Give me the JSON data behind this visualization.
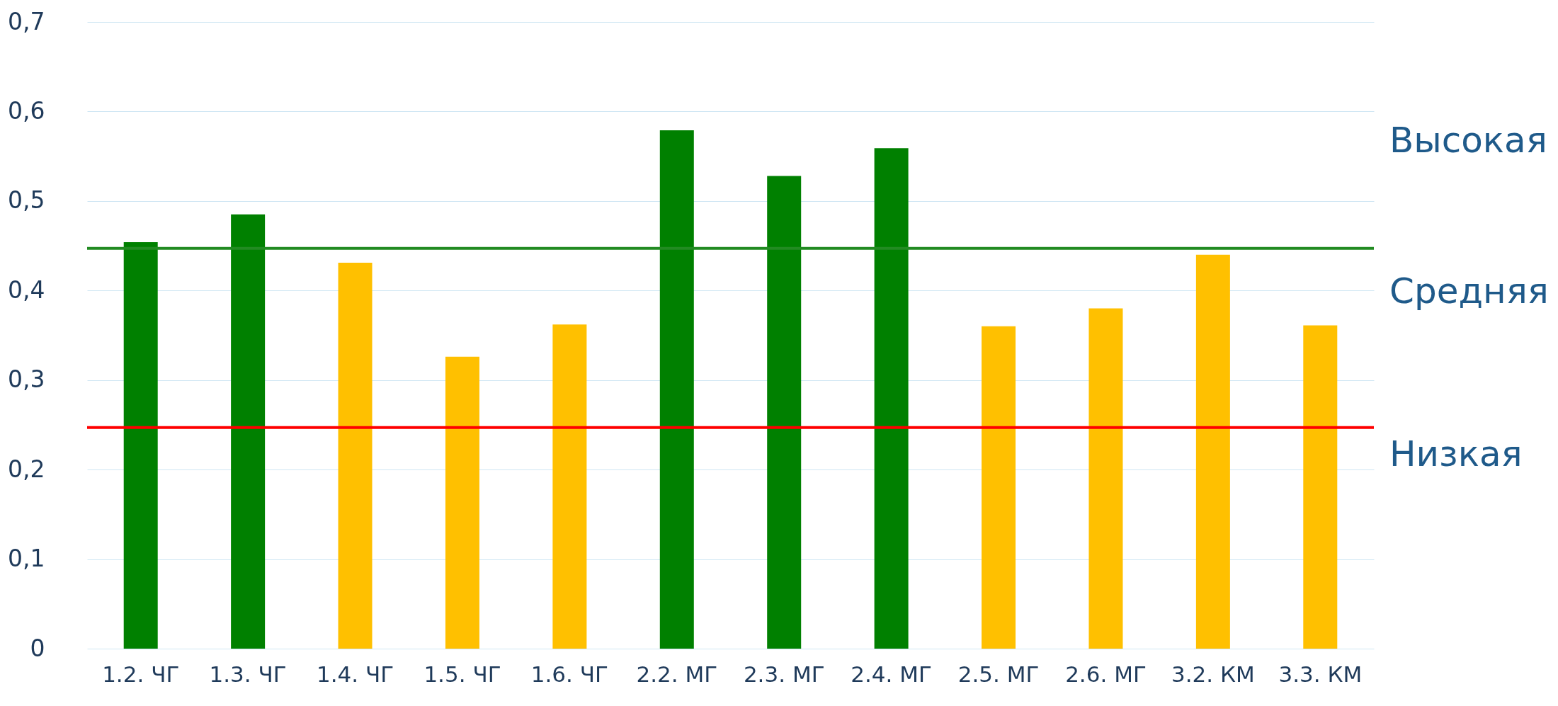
{
  "chart_data": {
    "type": "bar",
    "categories": [
      "1.2. ЧГ",
      "1.3. ЧГ",
      "1.4. ЧГ",
      "1.5. ЧГ",
      "1.6. ЧГ",
      "2.2. МГ",
      "2.3. МГ",
      "2.4. МГ",
      "2.5. МГ",
      "2.6. МГ",
      "3.2. КМ",
      "3.3. КМ"
    ],
    "values": [
      0.454,
      0.485,
      0.431,
      0.326,
      0.362,
      0.579,
      0.528,
      0.559,
      0.36,
      0.38,
      0.44,
      0.361
    ],
    "colors": [
      "#008000",
      "#008000",
      "#ffc000",
      "#ffc000",
      "#ffc000",
      "#008000",
      "#008000",
      "#008000",
      "#ffc000",
      "#ffc000",
      "#ffc000",
      "#ffc000"
    ],
    "ylim": [
      0,
      0.7
    ],
    "yticks": [
      0,
      {
        "value": 0.1,
        "label": "0,1"
      },
      {
        "value": 0.2,
        "label": "0,2"
      },
      {
        "value": 0.3,
        "label": "0,3"
      },
      {
        "value": 0.4,
        "label": "0,4"
      },
      {
        "value": 0.5,
        "label": "0,5"
      },
      {
        "value": 0.6,
        "label": "0,6"
      },
      {
        "value": 0.7,
        "label": "0,7"
      }
    ],
    "grid": "y",
    "ref_lines": [
      {
        "axis": "y",
        "value": 0.447,
        "color": "#228b22"
      },
      {
        "axis": "y",
        "value": 0.247,
        "color": "#ff0000"
      }
    ],
    "annotations": [
      "Высокая",
      "Средняя",
      "Низкая"
    ]
  }
}
